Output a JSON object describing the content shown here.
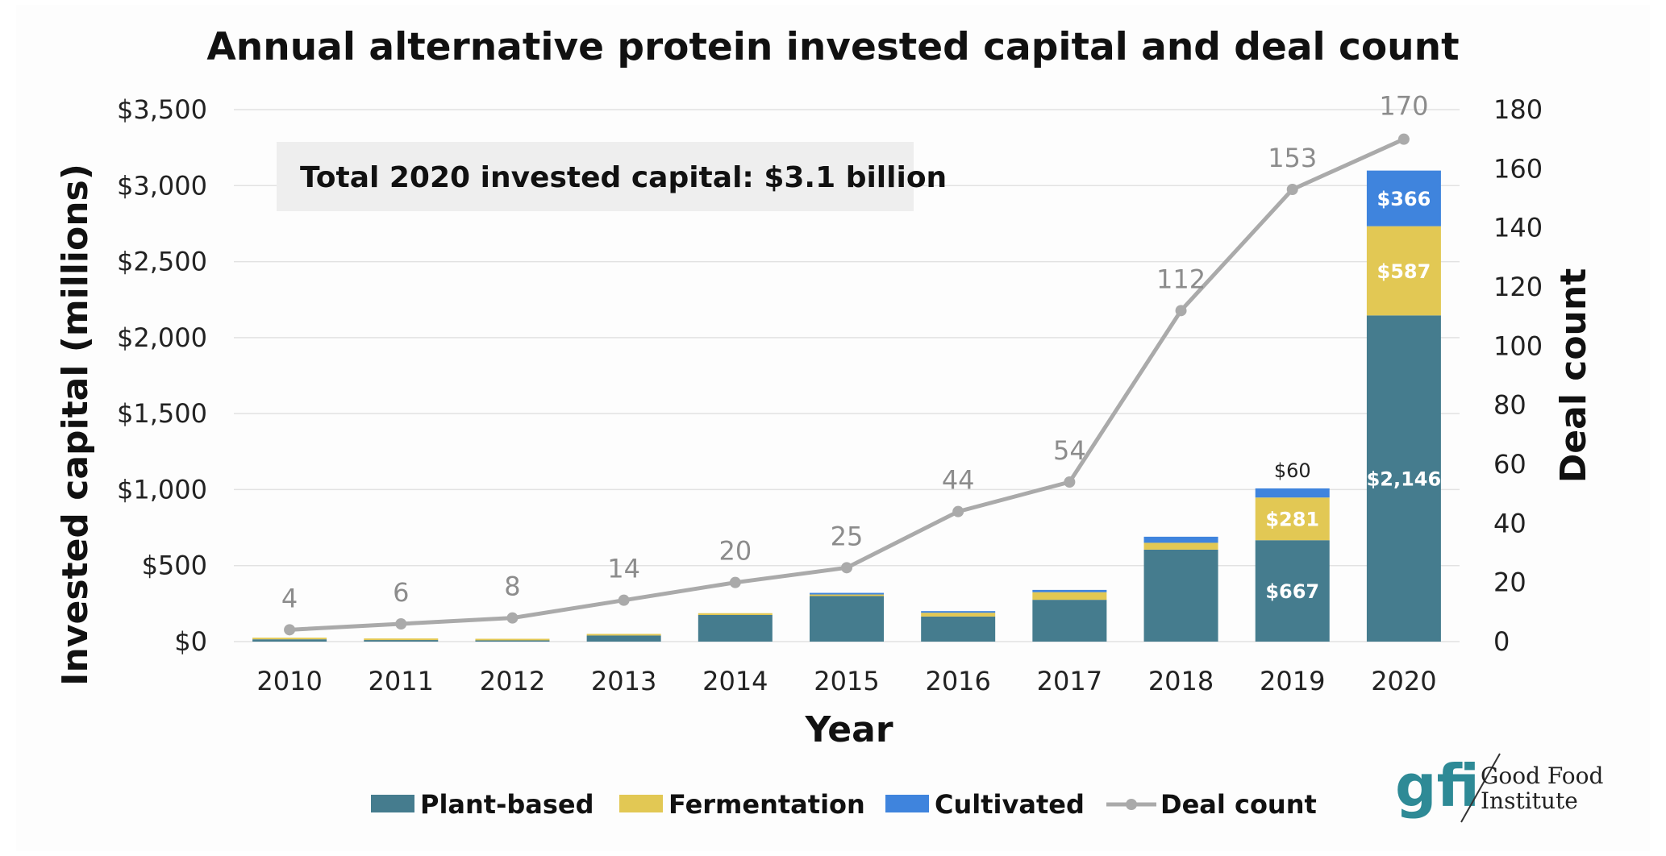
{
  "chart_data": {
    "type": "bar",
    "stacked": true,
    "title": "Annual alternative protein invested capital and deal count",
    "callout": "Total 2020 invested capital: $3.1 billion",
    "xlabel": "Year",
    "ylabel": "Invested capital (millions)",
    "y2label": "Deal count",
    "categories": [
      "2010",
      "2011",
      "2012",
      "2013",
      "2014",
      "2015",
      "2016",
      "2017",
      "2018",
      "2019",
      "2020"
    ],
    "ylim": [
      0,
      3500
    ],
    "y_ticks": [
      0,
      500,
      1000,
      1500,
      2000,
      2500,
      3000,
      3500
    ],
    "y_tick_labels": [
      "$0",
      "$500",
      "$1,000",
      "$1,500",
      "$2,000",
      "$2,500",
      "$3,000",
      "$3,500"
    ],
    "y2lim": [
      0,
      180
    ],
    "y2_ticks": [
      0,
      20,
      40,
      60,
      80,
      100,
      120,
      140,
      160,
      180
    ],
    "y2_tick_labels": [
      "0",
      "20",
      "40",
      "60",
      "80",
      "100",
      "120",
      "140",
      "160",
      "180"
    ],
    "grid": true,
    "legend_position": "bottom",
    "series": [
      {
        "name": "Plant-based",
        "color": "#457c8e",
        "values": [
          15,
          10,
          8,
          40,
          175,
          300,
          165,
          275,
          605,
          667,
          2146
        ],
        "labels": [
          "",
          "",
          "",
          "",
          "",
          "",
          "",
          "",
          "",
          "$667",
          "$2,146"
        ],
        "label_style": "white"
      },
      {
        "name": "Fermentation",
        "color": "#e2c854",
        "values": [
          2,
          2,
          2,
          8,
          12,
          10,
          25,
          50,
          45,
          281,
          587
        ],
        "labels": [
          "",
          "",
          "",
          "",
          "",
          "",
          "",
          "",
          "",
          "$281",
          "$587"
        ],
        "label_style": "white"
      },
      {
        "name": "Cultivated",
        "color": "#3f84dd",
        "values": [
          0,
          0,
          0,
          0,
          0,
          2,
          10,
          15,
          40,
          60,
          366
        ],
        "labels": [
          "",
          "",
          "",
          "",
          "",
          "",
          "",
          "",
          "",
          "$60",
          "$366"
        ],
        "label_style": "mixed"
      }
    ],
    "line_series": {
      "name": "Deal count",
      "color": "#aaaaaa",
      "axis": "right",
      "values": [
        4,
        6,
        8,
        14,
        20,
        25,
        44,
        54,
        112,
        153,
        170
      ],
      "labels": [
        "4",
        "6",
        "8",
        "14",
        "20",
        "25",
        "44",
        "54",
        "112",
        "153",
        "170"
      ]
    }
  },
  "logo": {
    "mark": "gfi",
    "line1": "Good Food",
    "line2": "Institute",
    "icon": "gfi-logo-icon"
  }
}
